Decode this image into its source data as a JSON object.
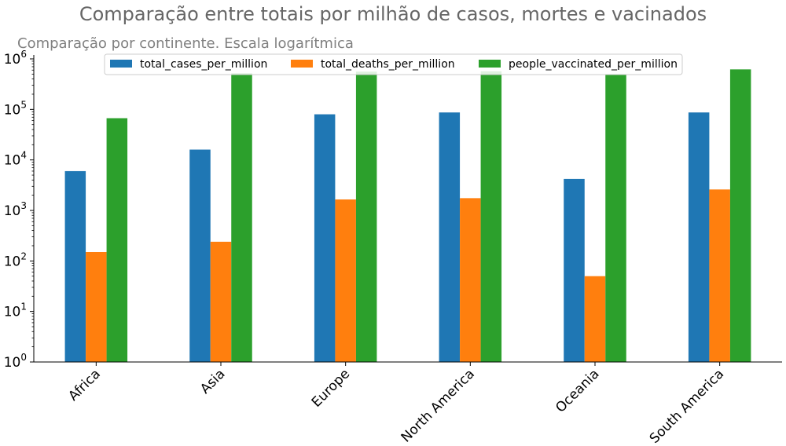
{
  "chart_data": {
    "type": "bar",
    "title": "Comparação entre totais por milhão de casos, mortes e vacinados",
    "subtitle": "Comparação por continente. Escala logarítmica",
    "xlabel": "",
    "ylabel": "",
    "yscale": "log",
    "ylim": [
      1,
      1000000
    ],
    "grid": false,
    "legend_position": "top-center",
    "categories": [
      "Africa",
      "Asia",
      "Europe",
      "North America",
      "Oceania",
      "South America"
    ],
    "series": [
      {
        "name": "total_cases_per_million",
        "color": "#1f77b4",
        "values": [
          6000,
          16000,
          80000,
          87000,
          4200,
          87000
        ]
      },
      {
        "name": "total_deaths_per_million",
        "color": "#ff7f0e",
        "values": [
          150,
          240,
          1650,
          1750,
          50,
          2600
        ]
      },
      {
        "name": "people_vaccinated_per_million",
        "color": "#2ca02c",
        "values": [
          67000,
          520000,
          560000,
          570000,
          490000,
          620000
        ]
      }
    ],
    "yticks": [
      {
        "value": 1,
        "base": "10",
        "exp": "0"
      },
      {
        "value": 10,
        "base": "10",
        "exp": "1"
      },
      {
        "value": 100,
        "base": "10",
        "exp": "2"
      },
      {
        "value": 1000,
        "base": "10",
        "exp": "3"
      },
      {
        "value": 10000,
        "base": "10",
        "exp": "4"
      },
      {
        "value": 100000,
        "base": "10",
        "exp": "5"
      },
      {
        "value": 1000000,
        "base": "10",
        "exp": "6"
      }
    ]
  }
}
